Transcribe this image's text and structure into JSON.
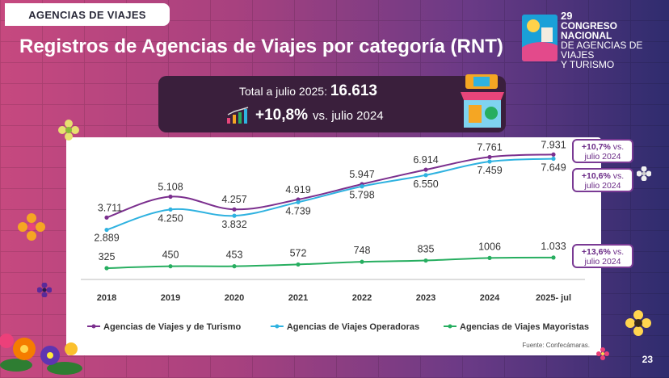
{
  "header": {
    "tag": "AGENCIAS DE VIAJES",
    "title": "Registros de Agencias de Viajes por categoría (RNT)"
  },
  "logo": {
    "number": "29",
    "line1": "CONGRESO NACIONAL",
    "line2": "DE AGENCIAS DE VIAJES",
    "line3": "Y TURISMO"
  },
  "banner": {
    "total_label": "Total a julio 2025:",
    "total_value": "16.613",
    "growth_value": "+10,8%",
    "growth_text": "vs. julio 2024"
  },
  "callouts": [
    {
      "pct": "+10,7%",
      "rest1": "vs.",
      "rest2": "julio 2024"
    },
    {
      "pct": "+10,6%",
      "rest1": "vs.",
      "rest2": "julio 2024"
    },
    {
      "pct": "+13,6%",
      "rest1": "vs.",
      "rest2": "julio 2024"
    }
  ],
  "chart_data": {
    "type": "line",
    "categories": [
      "2018",
      "2019",
      "2020",
      "2021",
      "2022",
      "2023",
      "2024",
      "2025- jul"
    ],
    "series": [
      {
        "name": "Agencias de Viajes y de Turismo",
        "color": "#7b2f8e",
        "values": [
          3711,
          5108,
          4257,
          4919,
          5947,
          6914,
          7761,
          7931
        ],
        "labels": [
          "3.711",
          "5.108",
          "4.257",
          "4.919",
          "5.947",
          "6.914",
          "7.761",
          "7.931"
        ]
      },
      {
        "name": "Agencias de Viajes Operadoras",
        "color": "#2fb2e0",
        "values": [
          2889,
          4250,
          3832,
          4739,
          5798,
          6550,
          7459,
          7649
        ],
        "labels": [
          "2.889",
          "4.250",
          "3.832",
          "4.739",
          "5.798",
          "6.550",
          "7.459",
          "7.649"
        ]
      },
      {
        "name": "Agencias de Viajes Mayoristas",
        "color": "#27ae60",
        "values": [
          325,
          450,
          453,
          572,
          748,
          835,
          1006,
          1033
        ],
        "labels": [
          "325",
          "450",
          "453",
          "572",
          "748",
          "835",
          "1006",
          "1.033"
        ]
      }
    ],
    "ylim": [
      0,
      8000
    ],
    "grid": false,
    "legend": "bottom"
  },
  "footer": {
    "source": "Fuente: Confecámaras.",
    "page": "23"
  }
}
